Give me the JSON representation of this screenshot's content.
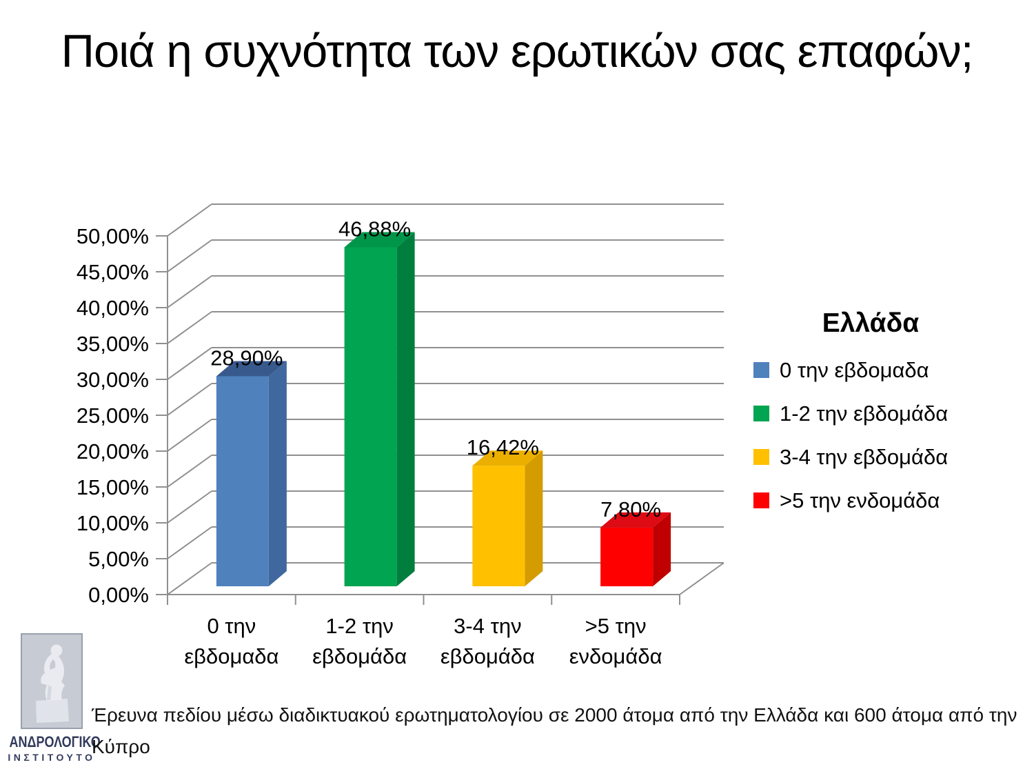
{
  "title": "Ποιά η συχνότητα των ερωτικών σας επαφών;",
  "chart_data": {
    "type": "bar",
    "projection": "3d",
    "categories": [
      "0 την εβδομαδα",
      "1-2 την εβδομάδα",
      "3-4 την εβδομάδα",
      ">5 την ενδομάδα"
    ],
    "values": [
      28.9,
      46.88,
      16.42,
      7.8
    ],
    "data_labels": [
      "28,90%",
      "46,88%",
      "16,42%",
      "7,80%"
    ],
    "ylabel": "",
    "xlabel": "",
    "ylim": [
      0,
      50
    ],
    "ytick_step": 5,
    "ytick_labels": [
      "0,00%",
      "5,00%",
      "10,00%",
      "15,00%",
      "20,00%",
      "25,00%",
      "30,00%",
      "35,00%",
      "40,00%",
      "45,00%",
      "50,00%"
    ],
    "grid": true,
    "grid_color": "#8F8F8F",
    "series_colors": [
      {
        "front": "#4F81BD",
        "side": "#40689E",
        "top": "#38598C"
      },
      {
        "front": "#00A451",
        "side": "#007E3E",
        "top": "#00964A"
      },
      {
        "front": "#FFC000",
        "side": "#D49C00",
        "top": "#EBAF00"
      },
      {
        "front": "#FE0000",
        "side": "#C00000",
        "top": "#DE0A14"
      }
    ],
    "legend": {
      "title": "Ελλάδα",
      "position": "right",
      "items": [
        {
          "label": "0 την εβδομαδα",
          "color": "#4F81BD"
        },
        {
          "label": "1-2 την εβδομάδα",
          "color": "#00A451"
        },
        {
          "label": "3-4 την εβδομάδα",
          "color": "#FFC000"
        },
        {
          "label": ">5 την ενδομάδα",
          "color": "#FE0000"
        }
      ]
    }
  },
  "logo": {
    "image": "thinker-statue",
    "line1": "ΑΝΔΡΟΛΟΓΙΚΟ",
    "line2": "ΙΝΣΤΙΤΟΥΤΟ"
  },
  "footnote": "Έρευνα πεδίου μέσω διαδικτυακού ερωτηματολογίου σε 2000 άτομα από την Ελλάδα και 600 άτομα από την Κύπρο"
}
